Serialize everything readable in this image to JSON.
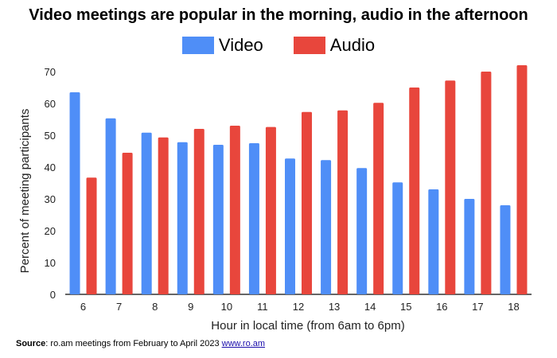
{
  "colors": {
    "video": "#4f8ef7",
    "audio": "#e8463c",
    "axis": "#333333",
    "text": "#222222"
  },
  "chart_data": {
    "type": "bar",
    "title": "Video meetings are popular in the morning, audio in the afternoon",
    "xlabel": "Hour in local time (from 6am to 6pm)",
    "ylabel": "Percent of meeting participants",
    "ylim": [
      0,
      75
    ],
    "yticks": [
      0,
      10,
      20,
      30,
      40,
      50,
      60,
      70
    ],
    "grid": false,
    "legend": "top-center",
    "categories": [
      "6",
      "7",
      "8",
      "9",
      "10",
      "11",
      "12",
      "13",
      "14",
      "15",
      "16",
      "17",
      "18"
    ],
    "series": [
      {
        "name": "Video",
        "values": [
          63.5,
          55.3,
          50.8,
          47.8,
          47.0,
          47.5,
          42.7,
          42.2,
          39.7,
          35.2,
          33.0,
          30.0,
          28.0
        ]
      },
      {
        "name": "Audio",
        "values": [
          36.7,
          44.5,
          49.3,
          52.0,
          53.0,
          52.6,
          57.3,
          57.8,
          60.2,
          65.0,
          67.2,
          70.0,
          72.0
        ]
      }
    ]
  },
  "source": {
    "label": "Source",
    "text": ": ro.am meetings from February to April 2023 ",
    "link": "www.ro.am"
  }
}
